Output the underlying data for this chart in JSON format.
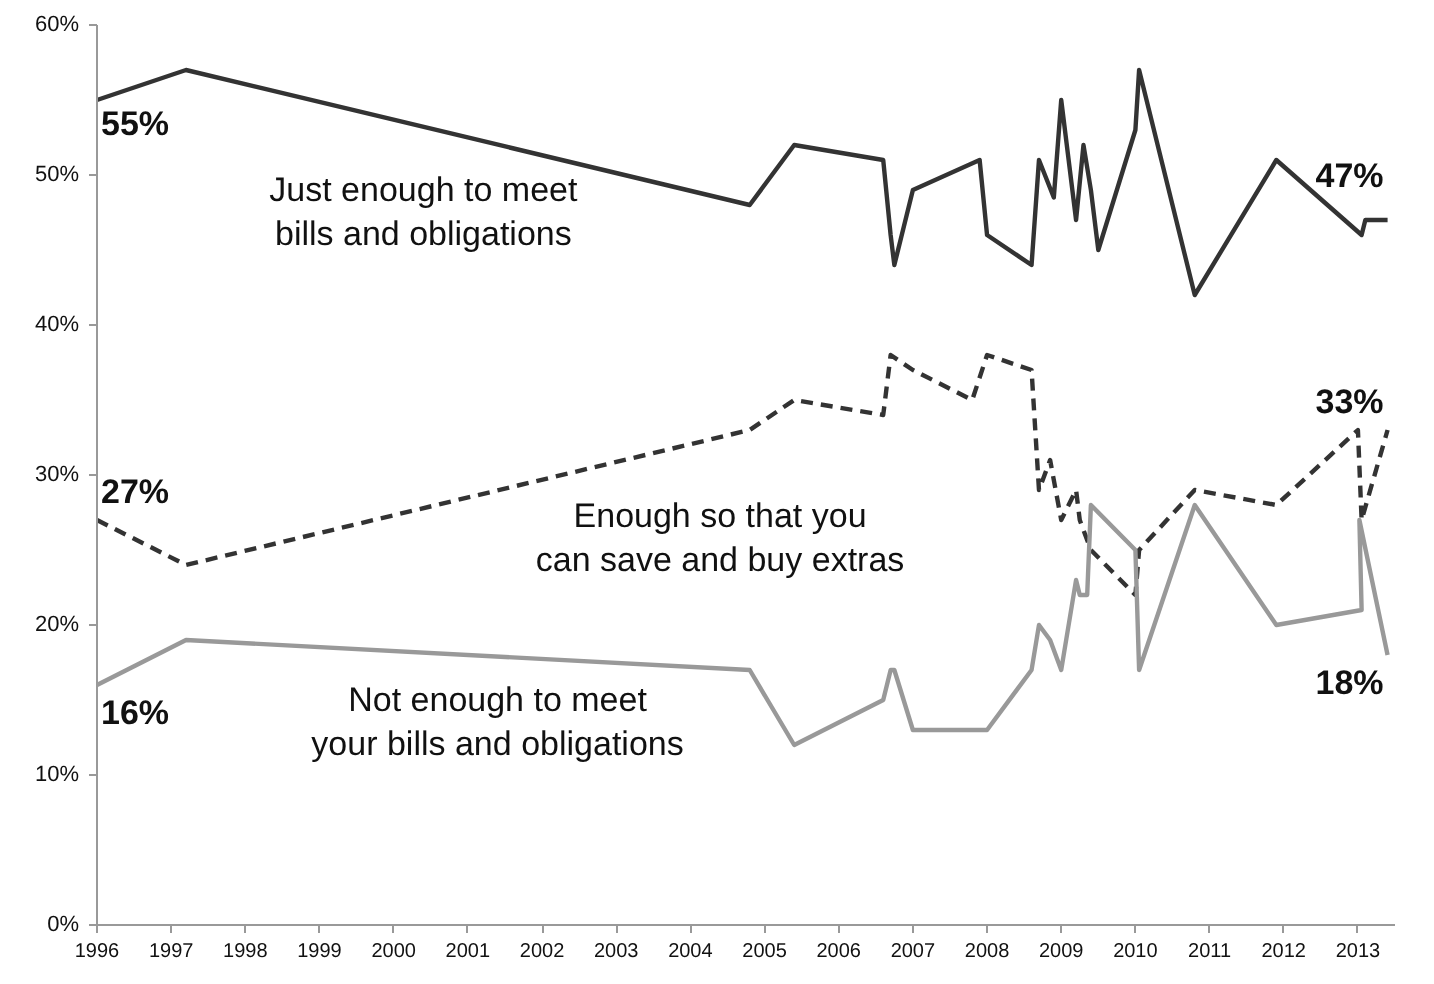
{
  "chart_data": {
    "type": "line",
    "xlim": [
      1996,
      2013.5
    ],
    "xticks": [
      1996,
      1997,
      1998,
      1999,
      2000,
      2001,
      2002,
      2003,
      2004,
      2005,
      2006,
      2007,
      2008,
      2009,
      2010,
      2011,
      2012,
      2013
    ],
    "ylim": [
      0,
      60
    ],
    "yticks": [
      {
        "value": 0,
        "label": "0%"
      },
      {
        "value": 10,
        "label": "10%"
      },
      {
        "value": 20,
        "label": "20%"
      },
      {
        "value": 30,
        "label": "30%"
      },
      {
        "value": 40,
        "label": "40%"
      },
      {
        "value": 50,
        "label": "50%"
      },
      {
        "value": 60,
        "label": "60%"
      }
    ],
    "grid": false,
    "series": [
      {
        "name": "Just enough to meet bills and obligations",
        "color": "#333333",
        "line_style": "solid",
        "x": [
          1996,
          1997.2,
          2004.8,
          2005.4,
          2006.6,
          2006.7,
          2006.75,
          2007.0,
          2007.9,
          2008.0,
          2008.6,
          2008.7,
          2008.9,
          2009.0,
          2009.2,
          2009.3,
          2009.4,
          2009.5,
          2010.0,
          2010.05,
          2010.8,
          2011.9,
          2013.05,
          2013.1,
          2013.4
        ],
        "values": [
          55,
          57,
          48,
          52,
          51,
          46,
          44,
          49,
          51,
          46,
          44,
          51,
          48.5,
          55,
          47,
          52,
          49,
          45,
          53,
          57,
          42,
          51,
          46,
          47,
          47
        ],
        "value_labels": [
          "55%",
          null,
          null,
          null,
          null,
          null,
          null,
          null,
          null,
          null,
          null,
          null,
          null,
          null,
          null,
          null,
          null,
          null,
          null,
          null,
          null,
          null,
          null,
          null,
          "47%"
        ]
      },
      {
        "name": "Enough so that you can save and buy extras",
        "color": "#333333",
        "line_style": "dashed",
        "x": [
          1996,
          1997.2,
          2004.8,
          2005.4,
          2006.6,
          2006.7,
          2007.0,
          2007.8,
          2008.0,
          2008.6,
          2008.7,
          2008.85,
          2009.0,
          2009.2,
          2009.25,
          2009.4,
          2010.0,
          2010.05,
          2010.8,
          2011.9,
          2013.0,
          2013.05,
          2013.4
        ],
        "values": [
          27,
          24,
          33,
          35,
          34,
          38,
          37,
          35,
          38,
          37,
          29,
          31,
          27,
          29,
          27,
          25,
          22,
          25,
          29,
          28,
          33,
          27,
          33
        ],
        "value_labels": [
          "27%",
          null,
          null,
          null,
          null,
          null,
          null,
          null,
          null,
          null,
          null,
          null,
          null,
          null,
          null,
          null,
          null,
          null,
          null,
          null,
          null,
          null,
          "33%"
        ]
      },
      {
        "name": "Not enough to meet your bills and obligations",
        "color": "#999999",
        "line_style": "solid",
        "x": [
          1996,
          1997.2,
          2004.8,
          2005.4,
          2006.6,
          2006.7,
          2006.75,
          2007.0,
          2008.0,
          2008.6,
          2008.7,
          2008.85,
          2009.0,
          2009.2,
          2009.25,
          2009.35,
          2009.4,
          2010.0,
          2010.05,
          2010.8,
          2011.9,
          2013.05,
          2013.02,
          2013.4
        ],
        "values": [
          16,
          19,
          17,
          12,
          15,
          17,
          17,
          13,
          13,
          17,
          20,
          19,
          17,
          23,
          22,
          22,
          28,
          25,
          17,
          28,
          20,
          21,
          27,
          18
        ],
        "value_labels": [
          "16%",
          null,
          null,
          null,
          null,
          null,
          null,
          null,
          null,
          null,
          null,
          null,
          null,
          null,
          null,
          null,
          null,
          null,
          null,
          null,
          null,
          null,
          null,
          "18%"
        ]
      }
    ]
  }
}
